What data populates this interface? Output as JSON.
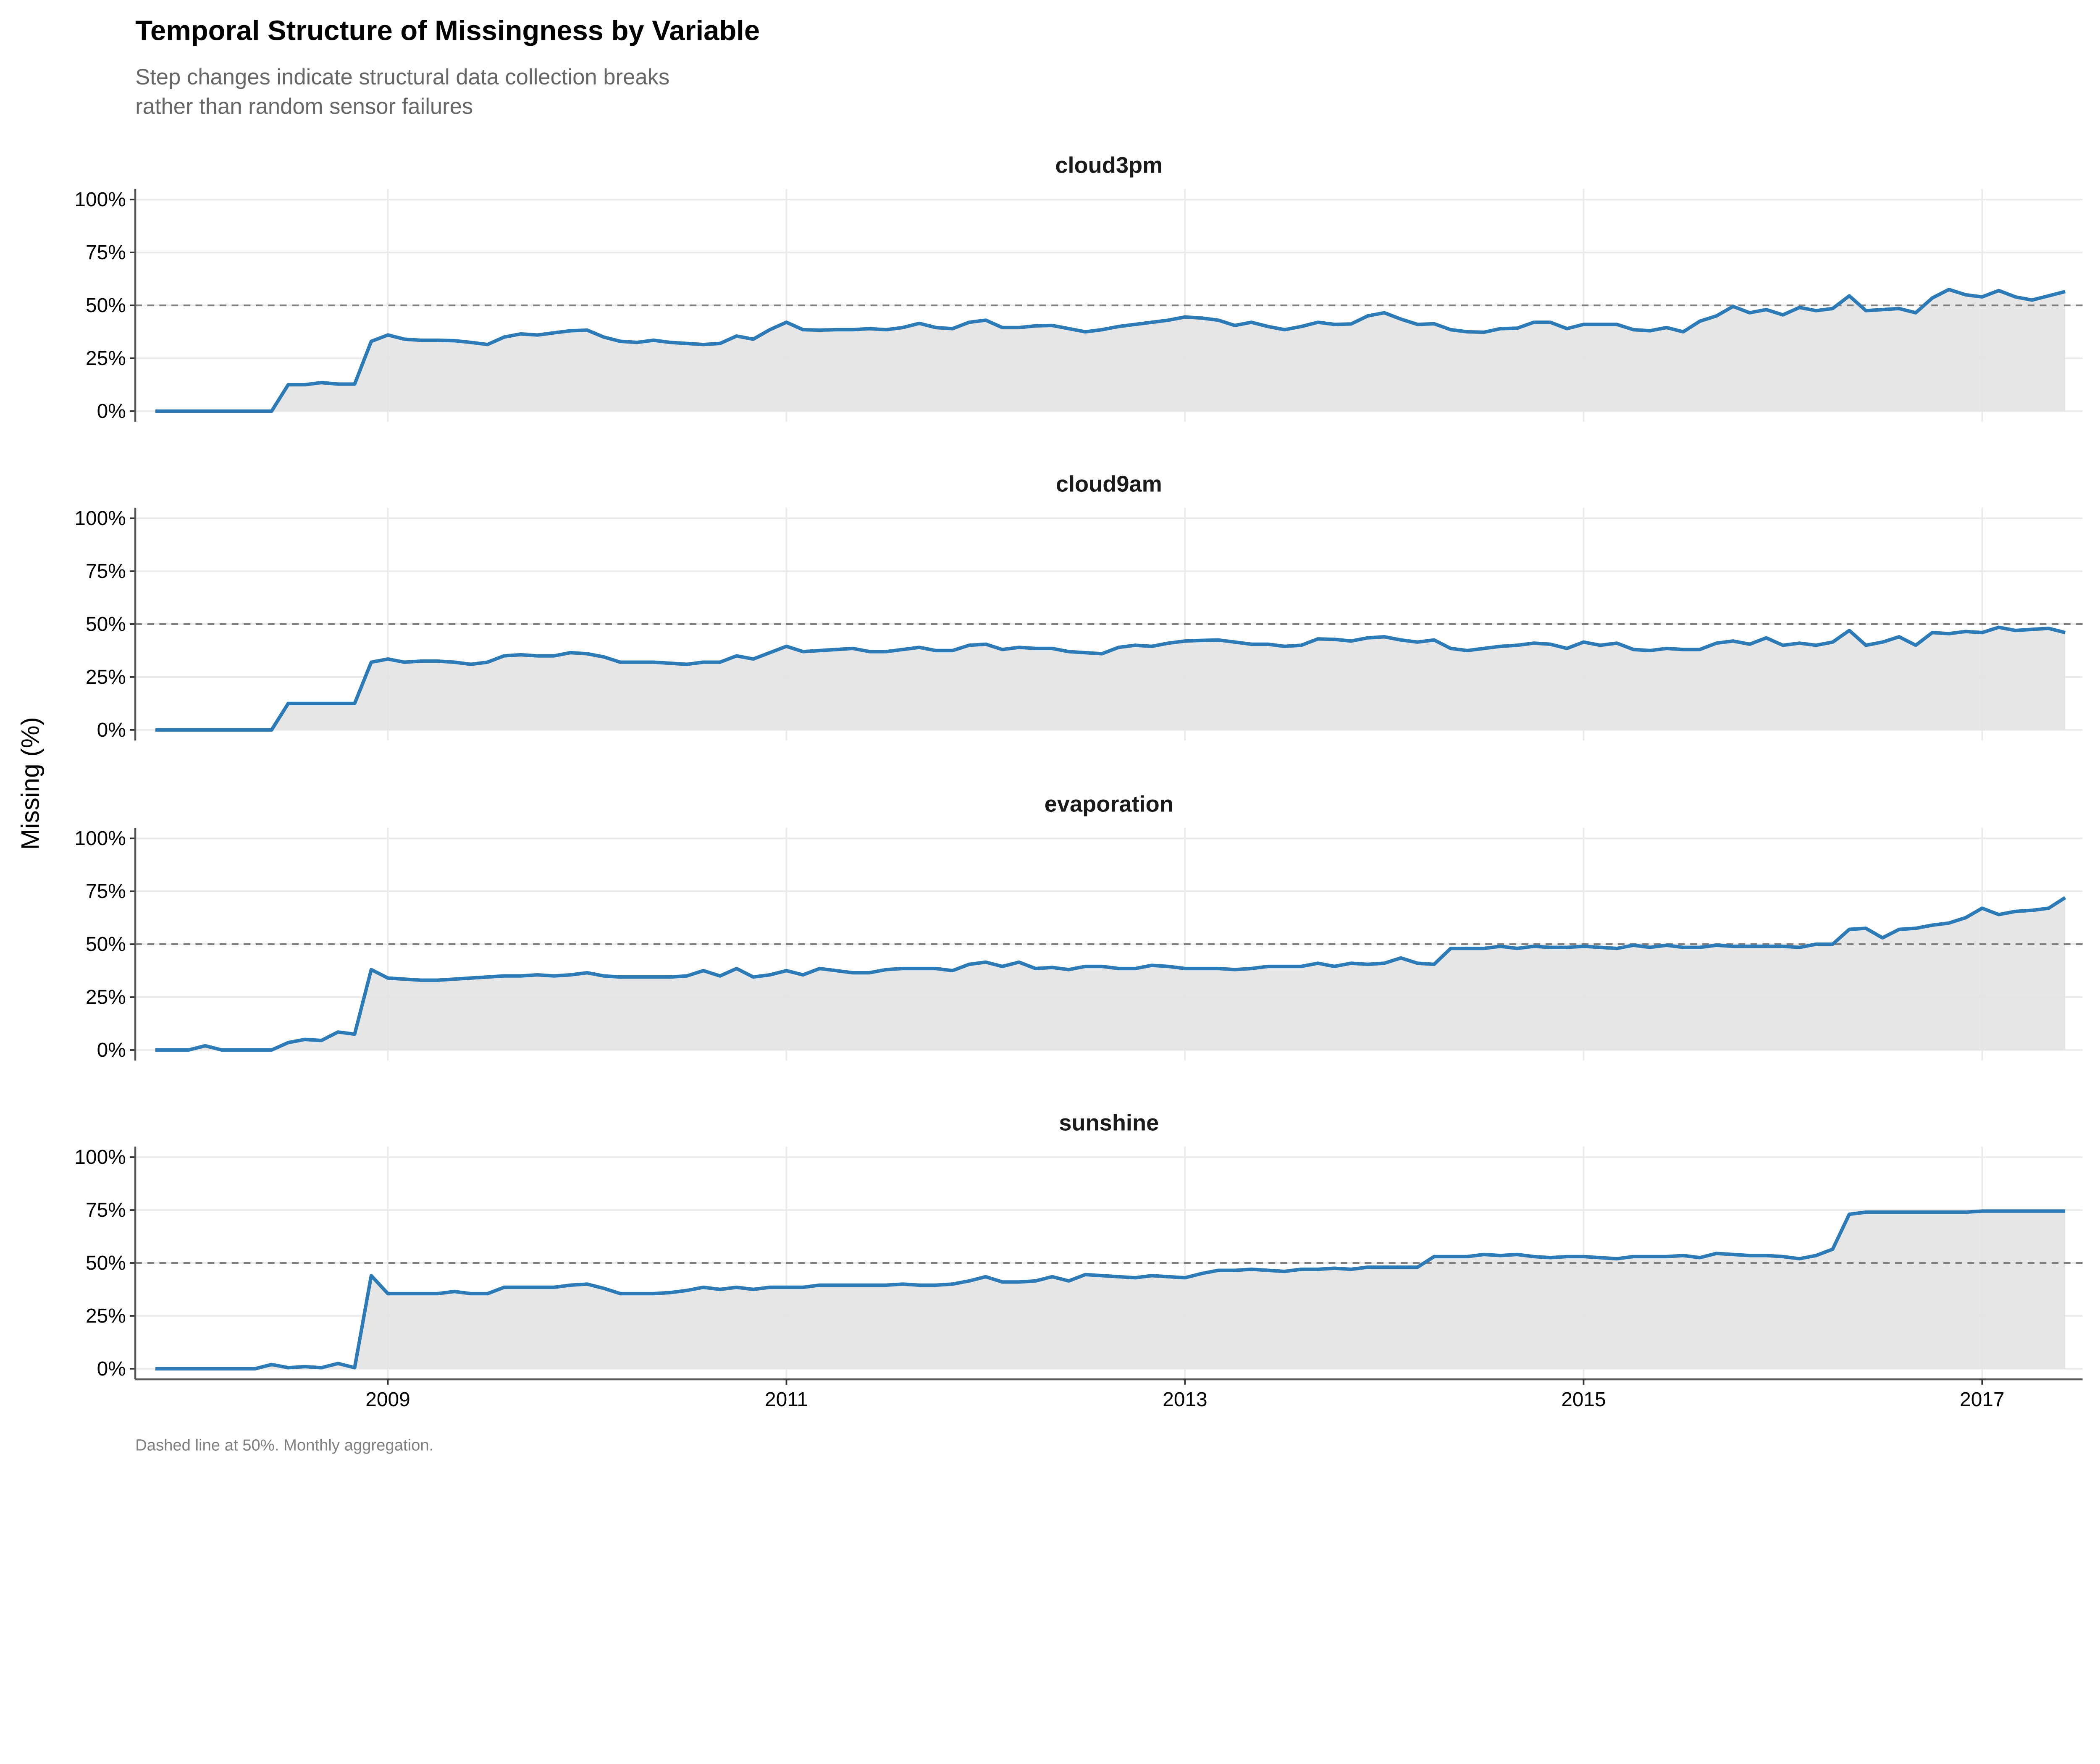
{
  "chart_data": {
    "type": "area",
    "title": "Temporal Structure of Missingness by Variable",
    "subtitle": [
      "Step changes indicate structural data collection breaks",
      "rather than random sensor failures"
    ],
    "ylabel": "Missing (%)",
    "xlabel": "",
    "caption": "Dashed line at 50%. Monthly aggregation.",
    "x_start": "2007-11",
    "x_frequency": "monthly",
    "x_ticks": [
      "2009",
      "2011",
      "2013",
      "2015",
      "2017"
    ],
    "y_ticks": [
      "0%",
      "25%",
      "50%",
      "75%",
      "100%"
    ],
    "ylim": [
      0,
      100
    ],
    "reference_line": 50,
    "grid": true,
    "colors": {
      "line": "#2c7bb6",
      "fill": "#e3e3e3",
      "reference": "#7f7f7f",
      "grid": "#ebebeb"
    },
    "series": [
      {
        "name": "cloud3pm",
        "values": [
          0,
          0,
          0,
          0,
          0,
          0,
          0,
          0,
          12.5,
          12.5,
          13.5,
          12.8,
          12.8,
          33,
          36,
          34,
          33.5,
          33.5,
          33.3,
          32.5,
          31.5,
          35,
          36.5,
          36,
          37,
          38,
          38.3,
          35,
          33,
          32.5,
          33.5,
          32.5,
          32,
          31.5,
          32,
          35.5,
          34,
          38.5,
          42,
          38.5,
          38.3,
          38.5,
          38.5,
          39,
          38.5,
          39.5,
          41.5,
          39.5,
          39,
          42,
          43,
          39.5,
          39.5,
          40.3,
          40.5,
          39,
          37.5,
          38.5,
          40,
          41,
          42,
          43,
          44.5,
          44,
          43,
          40.5,
          42,
          40,
          38.5,
          40,
          42,
          41,
          41.2,
          45,
          46.5,
          43.5,
          41,
          41.3,
          38.5,
          37.5,
          37.3,
          39,
          39.2,
          42,
          42,
          39,
          41,
          41,
          41,
          38.5,
          38,
          39.5,
          37.5,
          42.5,
          45,
          49.5,
          46.5,
          48,
          45.5,
          49,
          47.5,
          48.5,
          54.5,
          47.5,
          48,
          48.5,
          46.5,
          53.5,
          57.5,
          55,
          54,
          57,
          54,
          52.5,
          54.5,
          56.5
        ]
      },
      {
        "name": "cloud9am",
        "values": [
          0,
          0,
          0,
          0,
          0,
          0,
          0,
          0,
          12.5,
          12.5,
          12.5,
          12.5,
          12.5,
          32,
          33.5,
          32,
          32.5,
          32.5,
          32,
          31,
          32,
          35,
          35.5,
          35,
          35,
          36.5,
          36,
          34.5,
          32,
          32,
          32,
          31.5,
          31,
          32,
          32,
          35,
          33.5,
          36.5,
          39.5,
          37,
          37.5,
          38,
          38.5,
          37,
          37,
          38,
          39,
          37.5,
          37.5,
          40,
          40.5,
          38,
          39,
          38.5,
          38.5,
          37,
          36.5,
          36,
          39,
          40,
          39.5,
          41,
          42,
          42.3,
          42.5,
          41.5,
          40.5,
          40.5,
          39.5,
          40,
          43,
          42.8,
          42,
          43.5,
          44,
          42.5,
          41.5,
          42.5,
          38.5,
          37.5,
          38.5,
          39.5,
          40,
          41,
          40.5,
          38.5,
          41.5,
          40,
          41,
          38,
          37.5,
          38.5,
          38,
          38,
          41,
          42,
          40.5,
          43.5,
          40,
          41,
          40,
          41.5,
          47,
          40,
          41.5,
          44,
          40,
          46,
          45.5,
          46.5,
          46,
          48.5,
          47,
          47.5,
          48,
          46
        ]
      },
      {
        "name": "evaporation",
        "values": [
          0,
          0,
          0,
          2,
          0,
          0,
          0,
          0,
          3.5,
          5,
          4.5,
          8.5,
          7.5,
          38,
          34,
          33.5,
          33,
          33,
          33.5,
          34,
          34.5,
          35,
          35,
          35.5,
          35,
          35.5,
          36.5,
          35,
          34.5,
          34.5,
          34.5,
          34.5,
          35,
          37.5,
          35,
          38.5,
          34.5,
          35.5,
          37.5,
          35.5,
          38.5,
          37.5,
          36.5,
          36.5,
          38,
          38.5,
          38.5,
          38.5,
          37.5,
          40.5,
          41.5,
          39.5,
          41.5,
          38.5,
          39,
          38,
          39.5,
          39.5,
          38.5,
          38.5,
          40,
          39.5,
          38.5,
          38.5,
          38.5,
          38,
          38.5,
          39.5,
          39.5,
          39.5,
          41,
          39.5,
          41,
          40.5,
          41,
          43.5,
          41,
          40.5,
          48,
          48,
          48,
          49,
          48,
          49,
          48.5,
          48.5,
          49,
          48.5,
          48,
          49.5,
          48.5,
          49.5,
          48.5,
          48.5,
          49.5,
          49,
          49,
          49,
          49,
          48.5,
          50,
          50,
          57,
          57.5,
          53,
          57,
          57.5,
          59,
          60,
          62.5,
          67,
          64,
          65.5,
          66,
          67,
          72
        ]
      },
      {
        "name": "sunshine",
        "values": [
          0,
          0,
          0,
          0,
          0,
          0,
          0,
          2,
          0.5,
          1,
          0.5,
          2.5,
          0.5,
          44,
          35.5,
          35.5,
          35.5,
          35.5,
          36.5,
          35.5,
          35.5,
          38.5,
          38.5,
          38.5,
          38.5,
          39.5,
          40,
          38,
          35.5,
          35.5,
          35.5,
          36,
          37,
          38.5,
          37.5,
          38.5,
          37.5,
          38.5,
          38.5,
          38.5,
          39.5,
          39.5,
          39.5,
          39.5,
          39.5,
          40,
          39.5,
          39.5,
          40,
          41.5,
          43.5,
          41,
          41,
          41.5,
          43.5,
          41.5,
          44.5,
          44,
          43.5,
          43,
          44,
          43.5,
          43,
          45,
          46.5,
          46.5,
          47,
          46.5,
          46,
          47,
          47,
          47.5,
          47,
          48,
          48,
          48,
          48,
          53,
          53,
          53,
          54,
          53.5,
          54,
          53,
          52.5,
          53,
          53,
          52.5,
          52,
          53,
          53,
          53,
          53.5,
          52.5,
          54.5,
          54,
          53.5,
          53.5,
          53,
          52,
          53.5,
          56.5,
          73,
          74,
          74,
          74,
          74,
          74,
          74,
          74,
          74.5,
          74.5,
          74.5,
          74.5,
          74.5,
          74.5
        ]
      }
    ]
  }
}
